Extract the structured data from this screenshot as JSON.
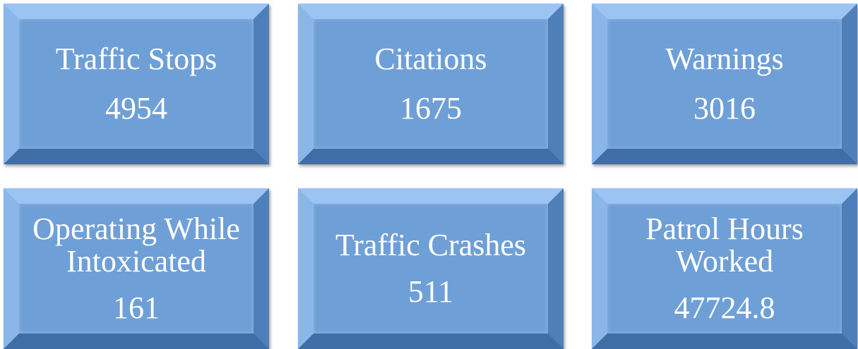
{
  "tiles": [
    {
      "label": "Traffic Stops",
      "value": 4954
    },
    {
      "label": "Citations",
      "value": 1675
    },
    {
      "label": "Warnings",
      "value": 3016
    },
    {
      "label": "Operating While Intoxicated",
      "value": 161
    },
    {
      "label": "Traffic Crashes",
      "value": 511
    },
    {
      "label": "Patrol Hours Worked",
      "value": 47724.8
    }
  ]
}
